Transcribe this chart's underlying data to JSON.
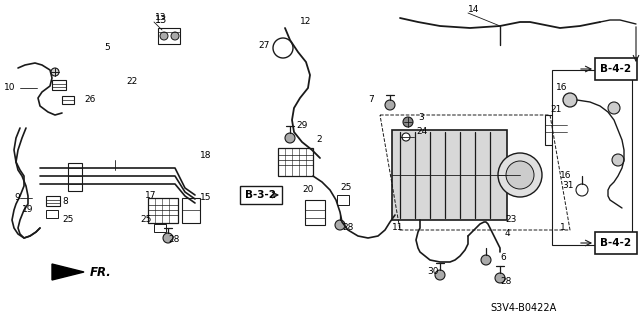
{
  "background_color": "#ffffff",
  "line_color": "#1a1a1a",
  "diagram_ref": "S3V4-B0422A",
  "fig_width": 6.4,
  "fig_height": 3.19,
  "dpi": 100
}
